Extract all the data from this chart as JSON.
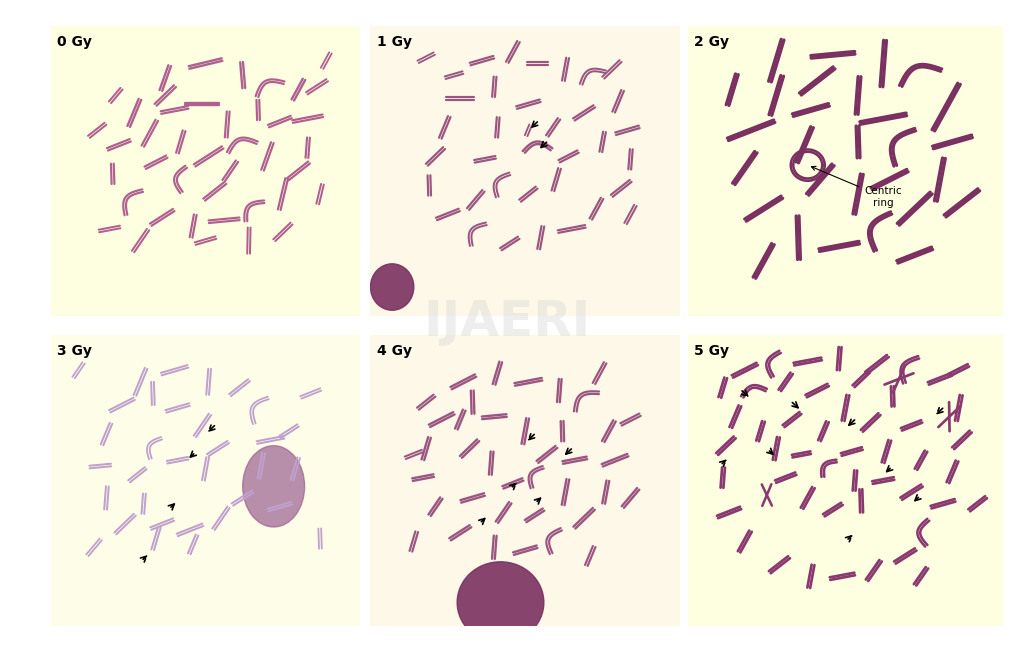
{
  "figure_bg": "#ffffff",
  "panel_bg_yellow": "#fefee0",
  "panel_bg_cream": "#fdf8e8",
  "chromosome_color_0": "#b06090",
  "chromosome_color_1": "#9b5580",
  "chromosome_color_2": "#7a3060",
  "chromosome_color_3": "#c0a0cc",
  "chromosome_color_4": "#9b5580",
  "chromosome_color_5": "#8a3870",
  "title_fontsize": 10,
  "labels": [
    "0 Gy",
    "1 Gy",
    "2 Gy",
    "3 Gy",
    "4 Gy",
    "5 Gy"
  ],
  "watermark_text": "IJAERI",
  "watermark_color": "#d0d0d0",
  "annotation_fontsize": 7.5
}
